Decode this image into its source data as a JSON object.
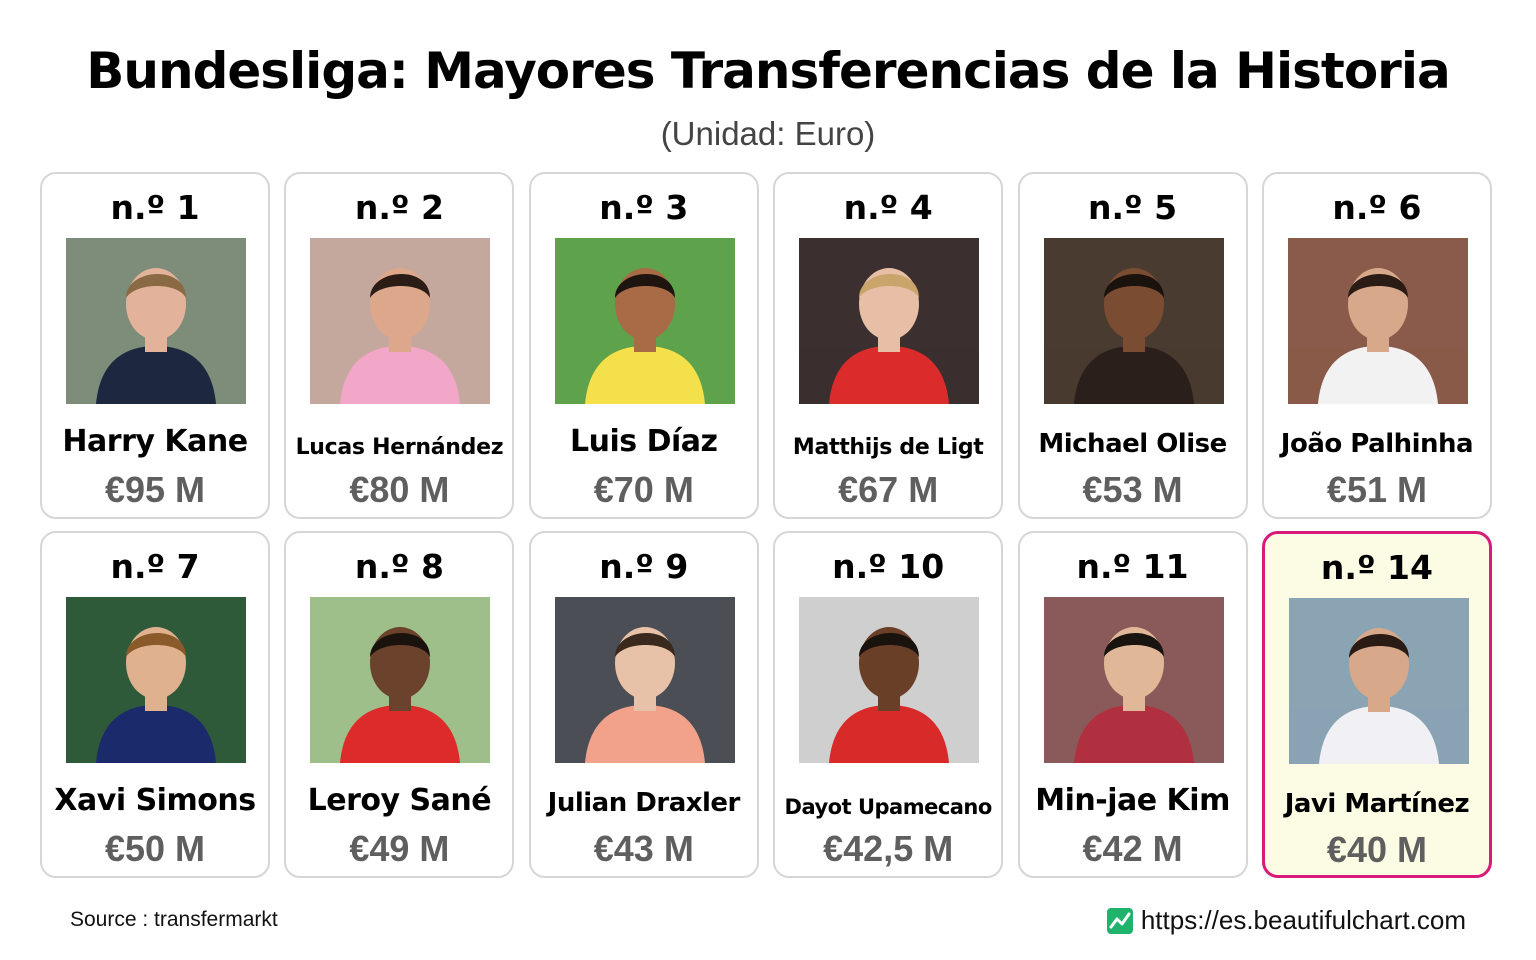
{
  "title": "Bundesliga: Mayores Transferencias de la Historia",
  "subtitle": "(Unidad: Euro)",
  "cards": [
    {
      "rank": "n.º 1",
      "name": "Harry Kane",
      "value": "€95 M",
      "size": "",
      "kit": "#1d2840",
      "bg": "#7e8c7a",
      "skin": "#e2b39a",
      "hair": "#8a6a45",
      "highlight": false
    },
    {
      "rank": "n.º 2",
      "name": "Lucas Hernández",
      "value": "€80 M",
      "size": "small",
      "kit": "#f2a6c8",
      "bg": "#c4a79d",
      "skin": "#dca78b",
      "hair": "#2b1d16",
      "highlight": false
    },
    {
      "rank": "n.º 3",
      "name": "Luis Díaz",
      "value": "€70 M",
      "size": "",
      "kit": "#f4e04a",
      "bg": "#5fa24c",
      "skin": "#a86b45",
      "hair": "#1e1410",
      "highlight": false
    },
    {
      "rank": "n.º 4",
      "name": "Matthijs de Ligt",
      "value": "€67 M",
      "size": "small",
      "kit": "#dc2b2b",
      "bg": "#3b2f2f",
      "skin": "#e6bfa6",
      "hair": "#c9a46b",
      "highlight": false
    },
    {
      "rank": "n.º 5",
      "name": "Michael Olise",
      "value": "€53 M",
      "size": "mid",
      "kit": "#2a1f1a",
      "bg": "#4a3b30",
      "skin": "#7a4d32",
      "hair": "#1a120d",
      "highlight": false
    },
    {
      "rank": "n.º 6",
      "name": "João Palhinha",
      "value": "€51 M",
      "size": "mid",
      "kit": "#f2f2f2",
      "bg": "#8a5a4a",
      "skin": "#d8a88a",
      "hair": "#2a1c14",
      "highlight": false
    },
    {
      "rank": "n.º 7",
      "name": "Xavi Simons",
      "value": "€50 M",
      "size": "",
      "kit": "#1b2a6b",
      "bg": "#2f5a3a",
      "skin": "#e0b18f",
      "hair": "#8a5a2a",
      "highlight": false
    },
    {
      "rank": "n.º 8",
      "name": "Leroy Sané",
      "value": "€49 M",
      "size": "",
      "kit": "#dd2a2a",
      "bg": "#9fbf8a",
      "skin": "#6b432c",
      "hair": "#1a120d",
      "highlight": false
    },
    {
      "rank": "n.º 9",
      "name": "Julian Draxler",
      "value": "€43 M",
      "size": "mid",
      "kit": "#f2a28a",
      "bg": "#4b4f55",
      "skin": "#e8c2a8",
      "hair": "#3a2a1e",
      "highlight": false
    },
    {
      "rank": "n.º 10",
      "name": "Dayot Upamecano",
      "value": "€42,5 M",
      "size": "xsmall",
      "kit": "#d92a2a",
      "bg": "#cfcfcf",
      "skin": "#6a3f28",
      "hair": "#1a120d",
      "highlight": false
    },
    {
      "rank": "n.º 11",
      "name": "Min-jae Kim",
      "value": "€42 M",
      "size": "",
      "kit": "#b03040",
      "bg": "#8a5a5a",
      "skin": "#e0b898",
      "hair": "#1a1410",
      "highlight": false
    },
    {
      "rank": "n.º 14",
      "name": "Javi Martínez",
      "value": "€40 M",
      "size": "mid",
      "kit": "#f0f0f5",
      "bg": "#8aa4b4",
      "skin": "#d8a88a",
      "hair": "#2a1c14",
      "highlight": true
    }
  ],
  "footer": {
    "source": "Source : transfermarkt",
    "site": "https://es.beautifulchart.com",
    "site_icon": "chart-logo-icon"
  }
}
